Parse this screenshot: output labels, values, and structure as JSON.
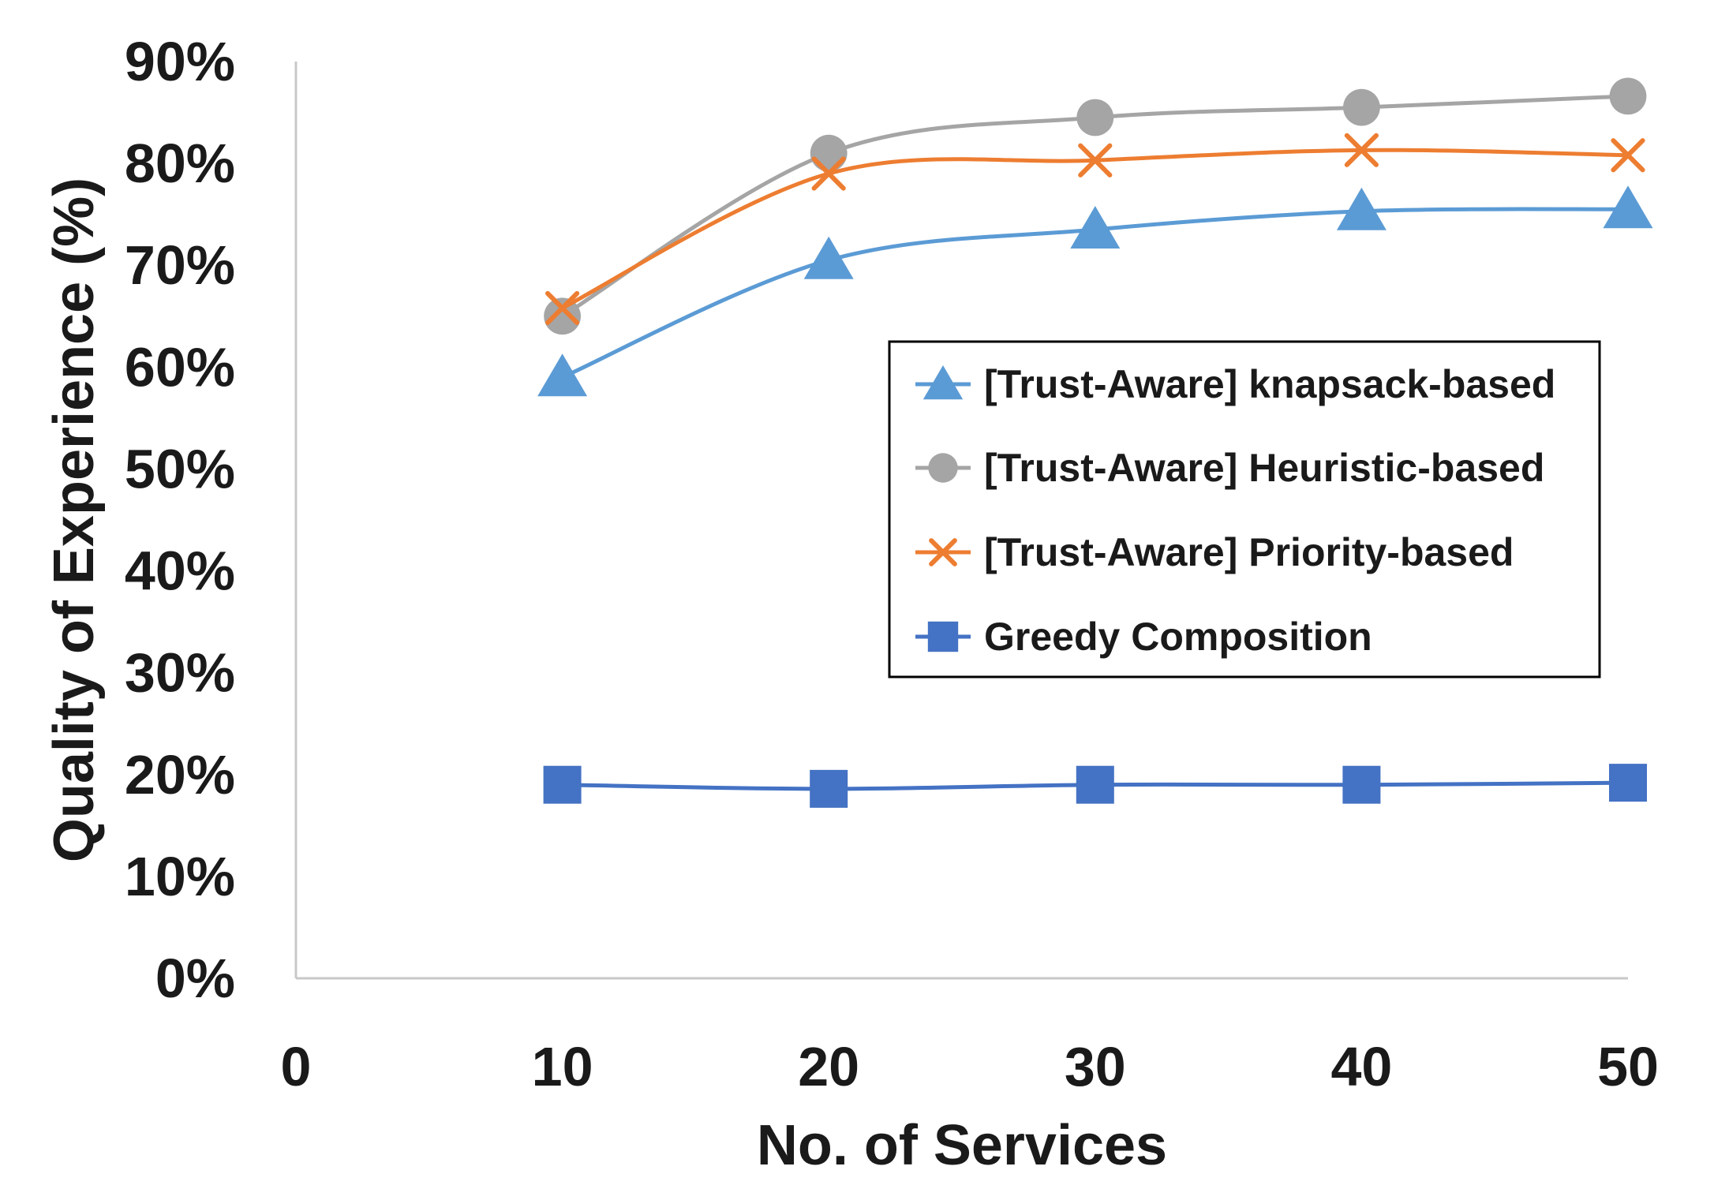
{
  "chart_data": {
    "type": "line",
    "title": "",
    "xlabel": "No. of Services",
    "ylabel": "Quality of Experience (%)",
    "xlim": [
      0,
      50
    ],
    "ylim": [
      0,
      90
    ],
    "x_ticks": [
      "0",
      "10",
      "20",
      "30",
      "40",
      "50"
    ],
    "y_ticks": [
      "0%",
      "10%",
      "20%",
      "30%",
      "40%",
      "50%",
      "60%",
      "70%",
      "80%",
      "90%"
    ],
    "grid": false,
    "legend_position": "center-right",
    "x": [
      10,
      20,
      30,
      40,
      50
    ],
    "series": [
      {
        "name": "[Trust-Aware] knapsack-based",
        "values": [
          59,
          70.5,
          73.5,
          75.3,
          75.5
        ],
        "color": "#5b9bd5",
        "marker": "triangle"
      },
      {
        "name": "[Trust-Aware] Heuristic-based",
        "values": [
          65,
          81,
          84.5,
          85.5,
          86.6
        ],
        "color": "#a5a5a5",
        "marker": "circle"
      },
      {
        "name": "[Trust-Aware] Priority-based",
        "values": [
          65.8,
          79,
          80.3,
          81.3,
          80.8
        ],
        "color": "#ed7d31",
        "marker": "x"
      },
      {
        "name": "Greedy Composition",
        "values": [
          19,
          18.6,
          19,
          19,
          19.2
        ],
        "color": "#4472c4",
        "marker": "square"
      }
    ]
  }
}
